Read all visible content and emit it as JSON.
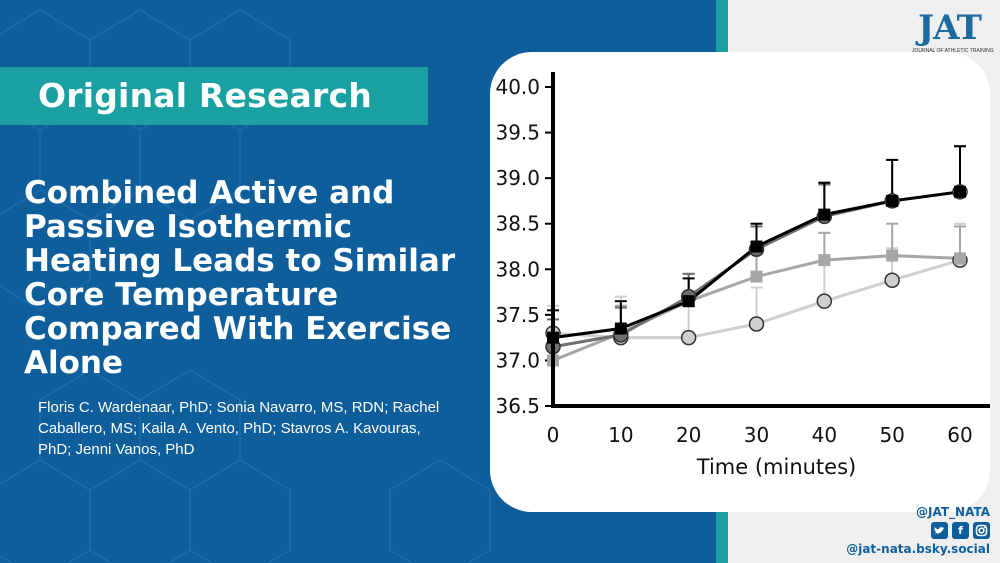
{
  "banner": {
    "label": "Original Research"
  },
  "article": {
    "title": "Combined Active and Passive Isothermic Heating Leads to Similar Core Temperature Compared With Exercise Alone",
    "authors": "Floris C. Wardenaar, PhD; Sonia Navarro, MS, RDN; Rachel Caballero, MS; Kaila A. Vento, PhD; Stavros A. Kavouras, PhD; Jenni Vanos, PhD"
  },
  "logo": {
    "mark": "JAT",
    "subtitle": "JOURNAL OF ATHLETIC TRAINING"
  },
  "social": {
    "handle": "@JAT_NATA",
    "icons": [
      "twitter-icon",
      "facebook-icon",
      "instagram-icon"
    ],
    "bluesky": "@jat-nata.bsky.social"
  },
  "colors": {
    "brand_blue": "#0f5e9c",
    "teal": "#1aa0a0",
    "panel_grey": "#efefef"
  },
  "chart_data": {
    "type": "line",
    "xlabel": "Time (minutes)",
    "x_ticks": [
      "0",
      "10",
      "20",
      "30",
      "40",
      "50",
      "60"
    ],
    "y_ticks": [
      "36.5",
      "37.0",
      "37.5",
      "38.0",
      "38.5",
      "39.0",
      "39.5",
      "40.0"
    ],
    "xlim": [
      0,
      60
    ],
    "ylim": [
      36.5,
      40.0
    ],
    "x": [
      0,
      10,
      20,
      30,
      40,
      50,
      60
    ],
    "series": [
      {
        "color": "#000000",
        "marker": "square",
        "values": [
          37.25,
          37.35,
          37.65,
          38.25,
          38.6,
          38.75,
          38.85
        ],
        "errors": [
          0.3,
          0.3,
          0.25,
          0.25,
          0.35,
          0.45,
          0.5
        ]
      },
      {
        "color": "#707070",
        "marker": "circle",
        "values": [
          37.15,
          37.28,
          37.7,
          38.22,
          38.58,
          38.75,
          38.85
        ],
        "errors": [
          0.3,
          0.3,
          0.25,
          0.25,
          0.35,
          0.45,
          0.5
        ]
      },
      {
        "color": "#a6a6a6",
        "marker": "square",
        "values": [
          37.0,
          37.3,
          37.65,
          37.92,
          38.1,
          38.15,
          38.12
        ],
        "errors": [
          0.3,
          0.3,
          0.3,
          0.25,
          0.3,
          0.35,
          0.35
        ]
      },
      {
        "color": "#cfcfcf",
        "marker": "circle",
        "values": [
          37.3,
          37.25,
          37.25,
          37.4,
          37.65,
          37.88,
          38.1
        ],
        "errors": [
          0.3,
          0.45,
          0.4,
          0.4,
          0.45,
          0.35,
          0.4
        ]
      }
    ]
  }
}
